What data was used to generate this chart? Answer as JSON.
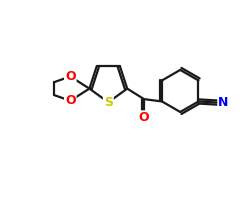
{
  "background_color": "#ffffff",
  "bond_color": "#1a1a1a",
  "S_color": "#cccc00",
  "O_color": "#ff0000",
  "N_color": "#0000ff",
  "line_width": 1.6,
  "figsize": [
    2.4,
    2.0
  ],
  "dpi": 100,
  "xlim": [
    0,
    10
  ],
  "ylim": [
    0,
    8.5
  ]
}
